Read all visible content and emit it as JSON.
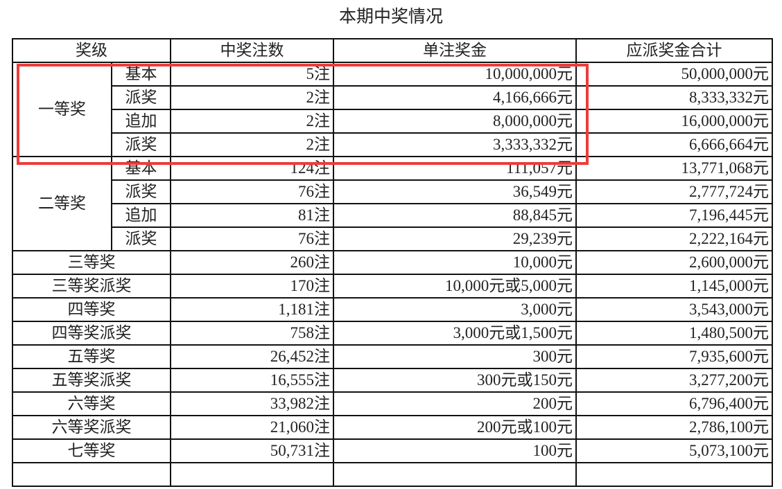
{
  "title": "本期中奖情况",
  "headers": [
    "奖级",
    "中奖注数",
    "单注奖金",
    "应派奖金合计"
  ],
  "highlight_color": "#ee3b3b",
  "groups": [
    {
      "level": "一等奖",
      "rows": [
        {
          "sub": "基本",
          "count": "5注",
          "single": "10,000,000元",
          "total": "50,000,000元"
        },
        {
          "sub": "派奖",
          "count": "2注",
          "single": "4,166,666元",
          "total": "8,333,332元"
        },
        {
          "sub": "追加",
          "count": "2注",
          "single": "8,000,000元",
          "total": "16,000,000元"
        },
        {
          "sub": "派奖",
          "count": "2注",
          "single": "3,333,332元",
          "total": "6,666,664元"
        }
      ]
    },
    {
      "level": "二等奖",
      "rows": [
        {
          "sub": "基本",
          "count": "124注",
          "single": "111,057元",
          "total": "13,771,068元"
        },
        {
          "sub": "派奖",
          "count": "76注",
          "single": "36,549元",
          "total": "2,777,724元"
        },
        {
          "sub": "追加",
          "count": "81注",
          "single": "88,845元",
          "total": "7,196,445元"
        },
        {
          "sub": "派奖",
          "count": "76注",
          "single": "29,239元",
          "total": "2,222,164元"
        }
      ]
    }
  ],
  "rows": [
    {
      "level": "三等奖",
      "count": "260注",
      "single": "10,000元",
      "total": "2,600,000元"
    },
    {
      "level": "三等奖派奖",
      "count": "170注",
      "single": "10,000元或5,000元",
      "total": "1,145,000元"
    },
    {
      "level": "四等奖",
      "count": "1,181注",
      "single": "3,000元",
      "total": "3,543,000元"
    },
    {
      "level": "四等奖派奖",
      "count": "758注",
      "single": "3,000元或1,500元",
      "total": "1,480,500元"
    },
    {
      "level": "五等奖",
      "count": "26,452注",
      "single": "300元",
      "total": "7,935,600元"
    },
    {
      "level": "五等奖派奖",
      "count": "16,555注",
      "single": "300元或150元",
      "total": "3,277,200元"
    },
    {
      "level": "六等奖",
      "count": "33,982注",
      "single": "200元",
      "total": "6,796,400元"
    },
    {
      "level": "六等奖派奖",
      "count": "21,060注",
      "single": "200元或100元",
      "total": "2,786,100元"
    },
    {
      "level": "七等奖",
      "count": "50,731注",
      "single": "100元",
      "total": "5,073,100元"
    }
  ]
}
